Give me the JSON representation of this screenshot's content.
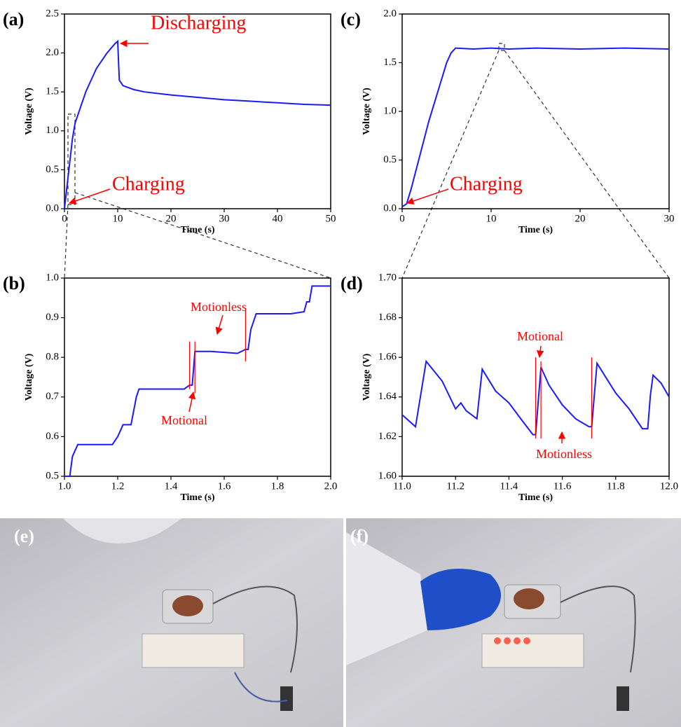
{
  "chart_data": [
    {
      "type": "line",
      "panel_label": "(a)",
      "x_label": "Time (s)",
      "y_label": "Voltage (V)",
      "color": "#1a1aff",
      "x": [
        0,
        0.5,
        1,
        1.5,
        2,
        3,
        4,
        5,
        6,
        7,
        8,
        9,
        9.5,
        10,
        10.3,
        11,
        13,
        15,
        20,
        25,
        30,
        35,
        40,
        45,
        50
      ],
      "values": [
        0,
        0.3,
        0.6,
        0.9,
        1.1,
        1.3,
        1.5,
        1.65,
        1.8,
        1.9,
        2.0,
        2.08,
        2.12,
        2.15,
        1.65,
        1.58,
        1.53,
        1.5,
        1.46,
        1.43,
        1.4,
        1.38,
        1.36,
        1.34,
        1.33
      ],
      "xlim": [
        0,
        50
      ],
      "xticks": [
        0,
        10,
        20,
        30,
        40,
        50
      ],
      "ylim": [
        0,
        2.5
      ],
      "yticks": [
        {
          "value": 0,
          "label": "0.0"
        },
        0.5,
        {
          "value": 1,
          "label": "1.0"
        },
        1.5,
        {
          "value": 2,
          "label": "2.0"
        },
        2.5
      ],
      "annotations": [
        "Discharging",
        "Charging"
      ]
    },
    {
      "type": "line",
      "panel_label": "(b)",
      "x_label": "Time (s)",
      "y_label": "Voltage (V)",
      "color": "#1a1aff",
      "x": [
        1.0,
        1.02,
        1.03,
        1.05,
        1.18,
        1.2,
        1.22,
        1.25,
        1.27,
        1.28,
        1.45,
        1.47,
        1.48,
        1.49,
        1.55,
        1.65,
        1.68,
        1.69,
        1.7,
        1.72,
        1.85,
        1.9,
        1.91,
        1.92,
        1.93,
        2.0
      ],
      "values": [
        0.5,
        0.5,
        0.55,
        0.58,
        0.58,
        0.6,
        0.63,
        0.63,
        0.7,
        0.72,
        0.72,
        0.73,
        0.73,
        0.815,
        0.815,
        0.81,
        0.82,
        0.82,
        0.87,
        0.91,
        0.91,
        0.915,
        0.94,
        0.94,
        0.98,
        0.98
      ],
      "xlim": [
        1,
        2
      ],
      "xticks": [
        {
          "value": 1,
          "label": "1.0"
        },
        1.2,
        1.4,
        1.6,
        1.8,
        {
          "value": 2,
          "label": "2.0"
        }
      ],
      "ylim": [
        0.5,
        1
      ],
      "yticks": [
        0.5,
        0.6,
        0.7,
        0.8,
        0.9,
        {
          "value": 1,
          "label": "1.0"
        }
      ],
      "markers": [
        {
          "x": 1.47,
          "y0": 0.72,
          "y1": 0.84
        },
        {
          "x": 1.49,
          "y0": 0.71,
          "y1": 0.84
        },
        {
          "x": 1.68,
          "y0": 0.79,
          "y1": 0.92
        }
      ],
      "annotations": [
        "Motionless",
        "Motional"
      ]
    },
    {
      "type": "line",
      "panel_label": "(c)",
      "x_label": "Time (s)",
      "y_label": "Voltage (V)",
      "color": "#1a1aff",
      "x": [
        0,
        0.5,
        1,
        2,
        3,
        4,
        5,
        5.5,
        6,
        8,
        10,
        12,
        15,
        20,
        25,
        30
      ],
      "values": [
        0.02,
        0.05,
        0.2,
        0.55,
        0.9,
        1.2,
        1.5,
        1.6,
        1.65,
        1.64,
        1.65,
        1.64,
        1.65,
        1.64,
        1.65,
        1.64
      ],
      "xlim": [
        0,
        30
      ],
      "xticks": [
        0,
        10,
        20,
        30
      ],
      "ylim": [
        0,
        2
      ],
      "yticks": [
        {
          "value": 0,
          "label": "0.0"
        },
        0.5,
        {
          "value": 1,
          "label": "1.0"
        },
        1.5,
        {
          "value": 2,
          "label": "2.0"
        }
      ],
      "annotations": [
        "Charging"
      ]
    },
    {
      "type": "line",
      "panel_label": "(d)",
      "x_label": "Time (s)",
      "y_label": "Voltage (V)",
      "color": "#1a1aff",
      "x": [
        11.0,
        11.05,
        11.09,
        11.15,
        11.2,
        11.22,
        11.24,
        11.28,
        11.3,
        11.35,
        11.4,
        11.45,
        11.49,
        11.5,
        11.52,
        11.55,
        11.6,
        11.65,
        11.7,
        11.71,
        11.73,
        11.8,
        11.85,
        11.9,
        11.92,
        11.93,
        11.94,
        11.97,
        12.0
      ],
      "values": [
        1.631,
        1.625,
        1.658,
        1.648,
        1.634,
        1.637,
        1.633,
        1.629,
        1.654,
        1.643,
        1.637,
        1.628,
        1.621,
        1.621,
        1.655,
        1.646,
        1.636,
        1.629,
        1.625,
        1.625,
        1.657,
        1.642,
        1.634,
        1.624,
        1.624,
        1.641,
        1.651,
        1.647,
        1.64
      ],
      "xlim": [
        11,
        12
      ],
      "xticks": [
        {
          "value": 11,
          "label": "11.0"
        },
        11.2,
        11.4,
        11.6,
        11.8,
        {
          "value": 12,
          "label": "12.0"
        }
      ],
      "ylim": [
        1.6,
        1.7
      ],
      "yticks": [
        {
          "value": 1.6,
          "label": "1.60"
        },
        1.62,
        1.64,
        1.66,
        1.68,
        {
          "value": 1.7,
          "label": "1.70"
        }
      ],
      "markers": [
        {
          "x": 11.5,
          "y0": 1.619,
          "y1": 1.66
        },
        {
          "x": 11.52,
          "y0": 1.619,
          "y1": 1.658
        },
        {
          "x": 11.71,
          "y0": 1.619,
          "y1": 1.66
        }
      ],
      "annotations": [
        "Motional",
        "Motionless"
      ]
    }
  ],
  "photos": [
    {
      "label": "(e)"
    },
    {
      "label": "(f)"
    }
  ]
}
